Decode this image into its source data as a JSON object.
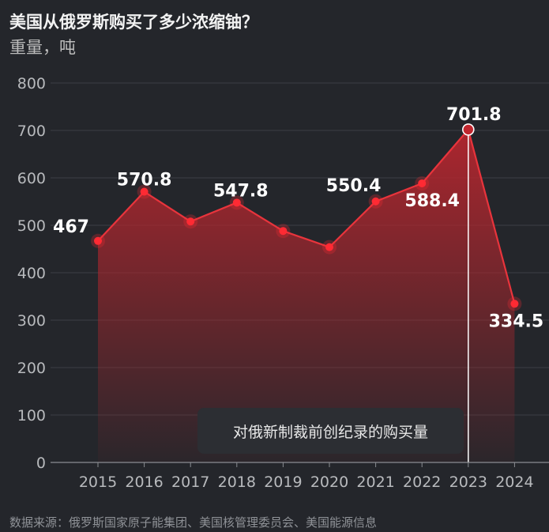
{
  "title": "美国从俄罗斯购买了多少浓缩铀？",
  "subtitle": "重量，吨",
  "source": "数据来源：俄罗斯国家原子能集团、美国核管理委员会、美国能源信息",
  "annotation": "对俄新制裁前创纪录的购买量",
  "colors": {
    "background": "#24262b",
    "line": "#e8343c",
    "area_top": "#b3262e",
    "marker": "#ff2a33",
    "highlight_line": "#ffffff"
  },
  "chart_data": {
    "type": "area",
    "title": "美国从俄罗斯购买了多少浓缩铀？",
    "ylabel": "重量，吨",
    "xlabel": "",
    "categories": [
      "2015",
      "2016",
      "2017",
      "2018",
      "2019",
      "2020",
      "2021",
      "2022",
      "2023",
      "2024"
    ],
    "values": [
      467,
      570.8,
      508,
      547.8,
      488,
      454,
      550.4,
      588.4,
      701.8,
      334.5
    ],
    "labeled": [
      {
        "index": 0,
        "text": "467"
      },
      {
        "index": 1,
        "text": "570.8"
      },
      {
        "index": 3,
        "text": "547.8"
      },
      {
        "index": 6,
        "text": "550.4"
      },
      {
        "index": 7,
        "text": "588.4"
      },
      {
        "index": 8,
        "text": "701.8"
      },
      {
        "index": 9,
        "text": "334.5"
      }
    ],
    "highlight_index": 8,
    "ylim": [
      0,
      800
    ],
    "yticks": [
      0,
      100,
      200,
      300,
      400,
      500,
      600,
      700,
      800
    ],
    "grid": true
  }
}
